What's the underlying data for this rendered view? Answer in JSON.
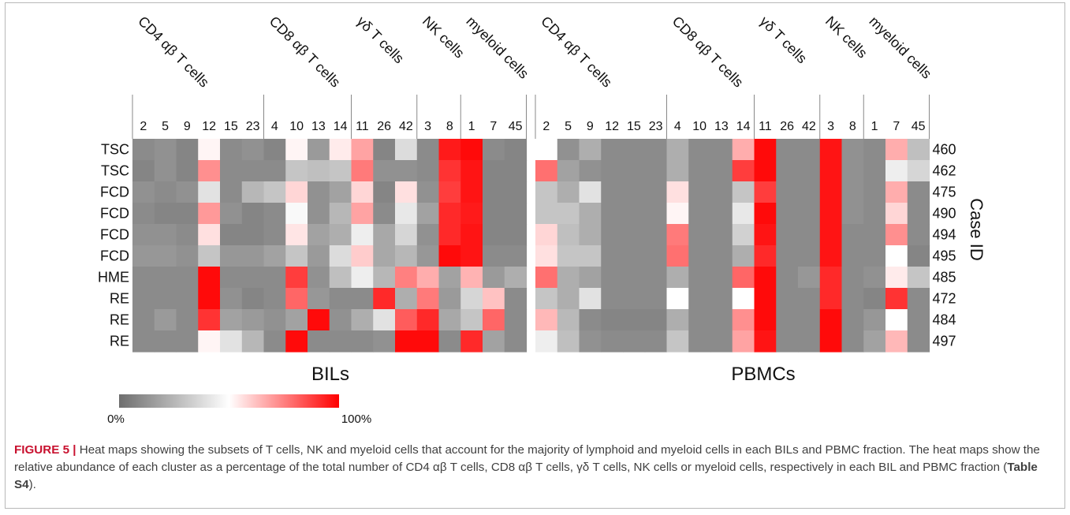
{
  "chart_data": [
    {
      "type": "heatmap",
      "title": "BILs",
      "groups": [
        {
          "name": "CD4 αβ T cells",
          "clusters": [
            "2",
            "5",
            "9",
            "12",
            "15",
            "23"
          ]
        },
        {
          "name": "CD8 αβ T cells",
          "clusters": [
            "4",
            "10",
            "13",
            "14"
          ]
        },
        {
          "name": "γδ T cells",
          "clusters": [
            "11",
            "26",
            "42"
          ]
        },
        {
          "name": "NK cells",
          "clusters": [
            "3",
            "8"
          ]
        },
        {
          "name": "myeloid cells",
          "clusters": [
            "1",
            "7",
            "45"
          ]
        }
      ],
      "columns": [
        "2",
        "5",
        "9",
        "12",
        "15",
        "23",
        "4",
        "10",
        "13",
        "14",
        "11",
        "26",
        "42",
        "3",
        "8",
        "1",
        "7",
        "45"
      ],
      "rows": [
        "TSC",
        "TSC",
        "FCD",
        "FCD",
        "FCD",
        "FCD",
        "HME",
        "RE",
        "RE",
        "RE"
      ],
      "value_unit": "%",
      "values": [
        [
          10,
          12,
          8,
          52,
          10,
          12,
          8,
          52,
          15,
          54,
          68,
          8,
          38,
          10,
          95,
          98,
          10,
          8
        ],
        [
          8,
          12,
          8,
          72,
          10,
          10,
          10,
          30,
          28,
          30,
          76,
          12,
          12,
          10,
          90,
          96,
          8,
          8
        ],
        [
          12,
          10,
          12,
          40,
          10,
          25,
          30,
          58,
          12,
          18,
          58,
          8,
          56,
          12,
          88,
          96,
          8,
          8
        ],
        [
          10,
          8,
          8,
          70,
          12,
          8,
          10,
          48,
          12,
          25,
          68,
          10,
          42,
          18,
          92,
          95,
          8,
          8
        ],
        [
          12,
          12,
          10,
          56,
          8,
          8,
          10,
          55,
          18,
          22,
          44,
          20,
          36,
          12,
          92,
          96,
          8,
          8
        ],
        [
          14,
          14,
          12,
          30,
          14,
          14,
          18,
          30,
          15,
          38,
          60,
          20,
          25,
          14,
          98,
          96,
          10,
          10
        ],
        [
          10,
          10,
          10,
          98,
          10,
          10,
          10,
          88,
          12,
          28,
          44,
          25,
          75,
          66,
          18,
          65,
          15,
          22
        ],
        [
          10,
          10,
          10,
          98,
          12,
          8,
          10,
          80,
          14,
          10,
          10,
          92,
          22,
          76,
          15,
          36,
          62,
          10
        ],
        [
          10,
          15,
          10,
          90,
          18,
          15,
          12,
          18,
          98,
          12,
          22,
          40,
          82,
          92,
          20,
          30,
          80,
          10
        ],
        [
          10,
          10,
          10,
          52,
          40,
          25,
          10,
          98,
          10,
          10,
          10,
          12,
          98,
          98,
          10,
          92,
          18,
          10
        ]
      ]
    },
    {
      "type": "heatmap",
      "title": "PBMCs",
      "groups": [
        {
          "name": "CD4 αβ T cells",
          "clusters": [
            "2",
            "5",
            "9",
            "12",
            "15",
            "23"
          ]
        },
        {
          "name": "CD8 αβ T cells",
          "clusters": [
            "4",
            "10",
            "13",
            "14"
          ]
        },
        {
          "name": "γδ T cells",
          "clusters": [
            "11",
            "26",
            "42"
          ]
        },
        {
          "name": "NK cells",
          "clusters": [
            "3",
            "8"
          ]
        },
        {
          "name": "myeloid cells",
          "clusters": [
            "1",
            "7",
            "45"
          ]
        }
      ],
      "columns": [
        "2",
        "5",
        "9",
        "12",
        "15",
        "23",
        "4",
        "10",
        "13",
        "14",
        "11",
        "26",
        "42",
        "3",
        "8",
        "1",
        "7",
        "45"
      ],
      "rows": [
        "460",
        "462",
        "475",
        "490",
        "494",
        "495",
        "485",
        "472",
        "484",
        "497"
      ],
      "y_axis_label": "Case ID",
      "value_unit": "%",
      "values": [
        [
          50,
          12,
          22,
          10,
          10,
          10,
          22,
          10,
          10,
          66,
          98,
          10,
          10,
          96,
          12,
          10,
          66,
          28
        ],
        [
          78,
          18,
          12,
          10,
          10,
          10,
          22,
          10,
          10,
          88,
          98,
          10,
          10,
          96,
          12,
          10,
          44,
          36
        ],
        [
          30,
          22,
          40,
          10,
          10,
          10,
          56,
          10,
          10,
          30,
          88,
          10,
          10,
          96,
          12,
          10,
          66,
          10
        ],
        [
          30,
          30,
          22,
          10,
          10,
          10,
          52,
          10,
          10,
          42,
          98,
          10,
          10,
          96,
          12,
          10,
          58,
          10
        ],
        [
          58,
          28,
          22,
          10,
          10,
          10,
          76,
          10,
          10,
          34,
          96,
          10,
          10,
          96,
          10,
          10,
          72,
          10
        ],
        [
          56,
          30,
          30,
          10,
          10,
          10,
          78,
          10,
          10,
          22,
          92,
          10,
          10,
          96,
          10,
          10,
          50,
          8
        ],
        [
          78,
          22,
          18,
          10,
          10,
          10,
          22,
          10,
          10,
          80,
          98,
          10,
          14,
          92,
          10,
          12,
          54,
          30
        ],
        [
          30,
          22,
          40,
          10,
          10,
          10,
          50,
          10,
          10,
          50,
          98,
          10,
          10,
          92,
          10,
          8,
          90,
          10
        ],
        [
          64,
          26,
          10,
          8,
          8,
          8,
          22,
          10,
          10,
          72,
          98,
          10,
          10,
          98,
          10,
          14,
          50,
          10
        ],
        [
          44,
          28,
          12,
          10,
          10,
          10,
          30,
          10,
          10,
          68,
          96,
          10,
          10,
          98,
          10,
          18,
          64,
          10
        ]
      ]
    }
  ],
  "colorbar": {
    "min_label": "0%",
    "max_label": "100%",
    "min": 0,
    "max": 100
  },
  "colors": {
    "low": "#6e6e6e",
    "mid": "#ffffff",
    "high": "#ff0000",
    "caption_accent": "#c8102e"
  },
  "caption": {
    "figure_label": "FIGURE 5 |",
    "text": " Heat maps showing the subsets of T cells, NK and myeloid cells that account for the majority of lymphoid and myeloid cells in each BILs and PBMC fraction. The heat maps show the relative abundance of each cluster as a percentage of the total number of CD4 αβ T cells, CD8 αβ T cells, γδ T cells, NK cells or myeloid cells, respectively in each BIL and PBMC fraction (",
    "ref": "Table S4",
    "end": ")."
  }
}
